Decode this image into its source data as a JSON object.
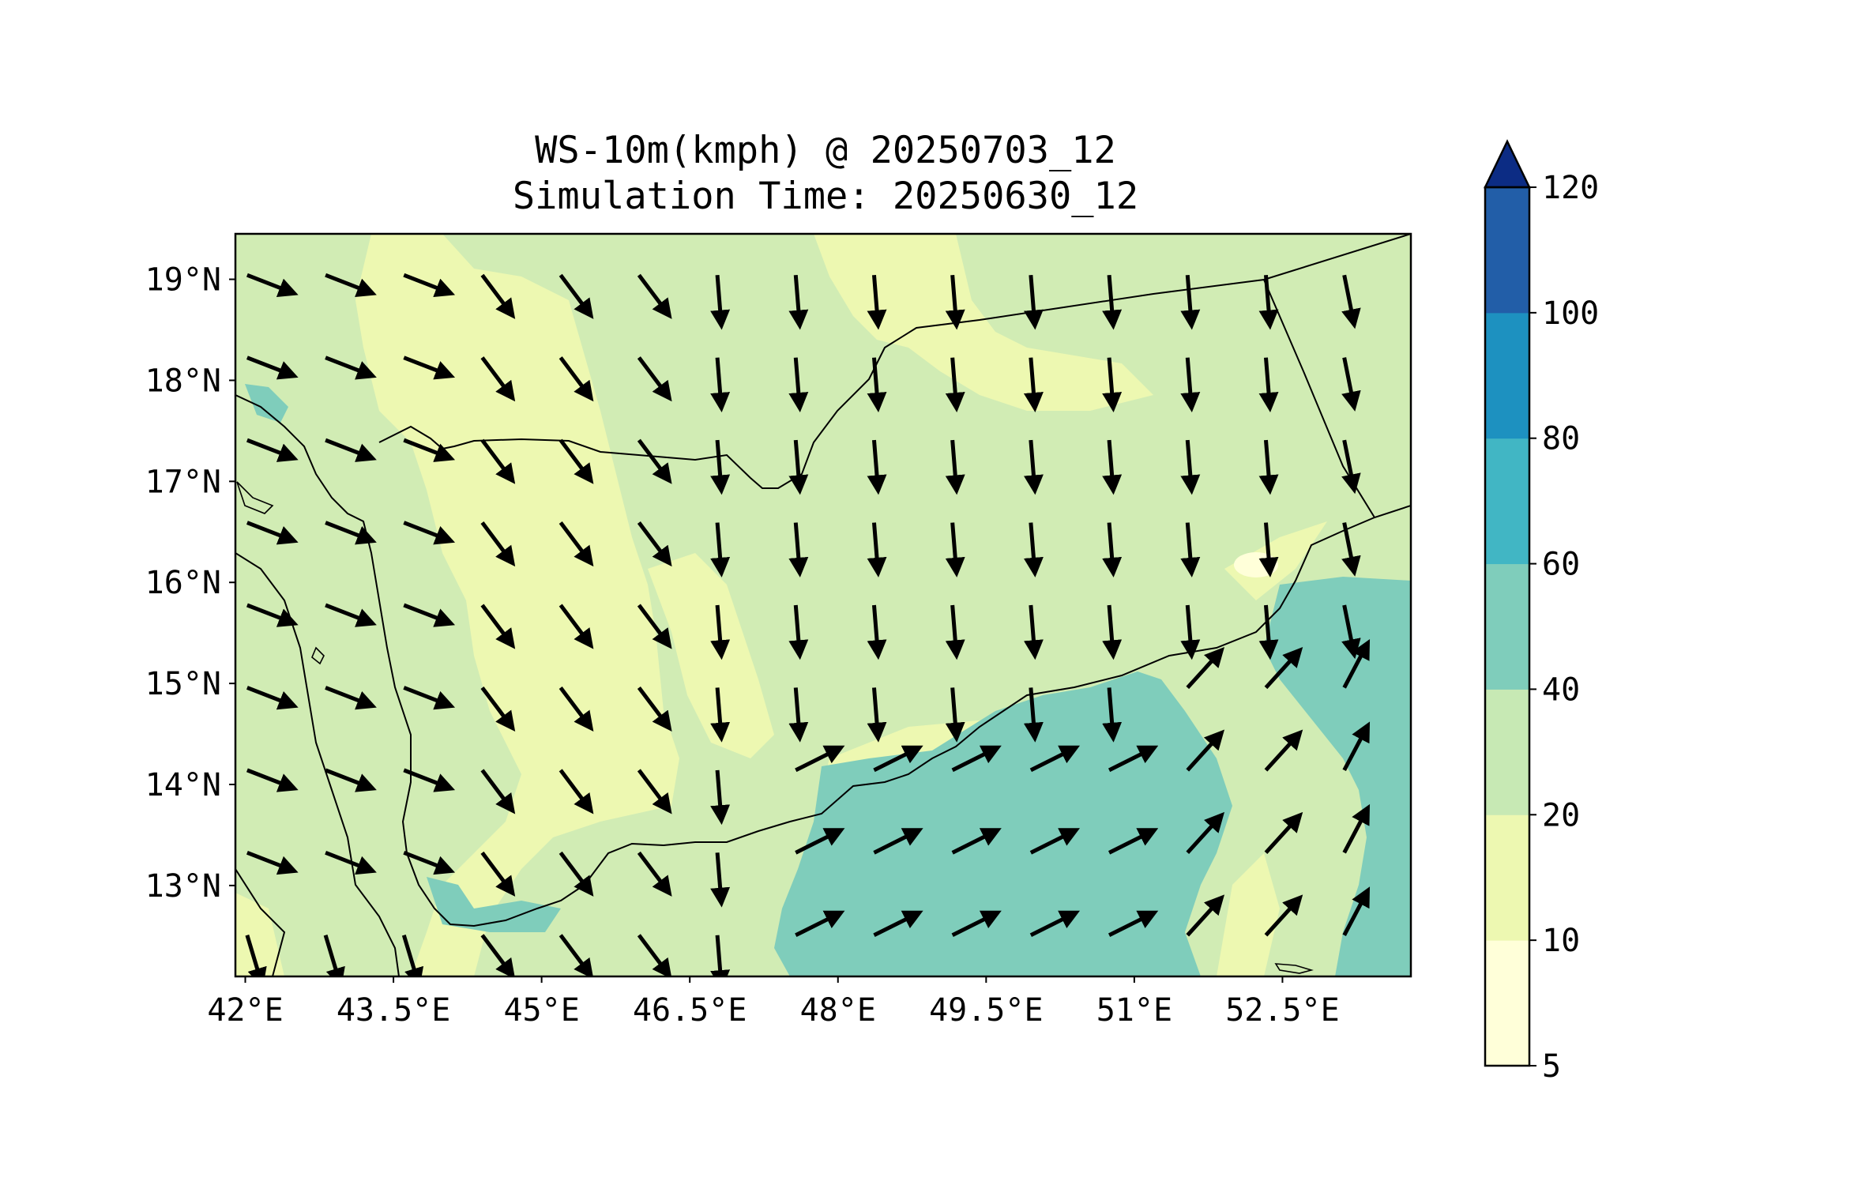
{
  "title_line1": "WS-10m(kmph) @ 20250703_12",
  "title_line2": "Simulation Time: 20250630_12",
  "map": {
    "lon_range": [
      41.9,
      53.8
    ],
    "lat_range": [
      12.1,
      19.45
    ],
    "x_ticks": [
      "42°E",
      "43.5°E",
      "45°E",
      "46.5°E",
      "48°E",
      "49.5°E",
      "51°E",
      "52.5°E"
    ],
    "y_ticks": [
      "19°N",
      "18°N",
      "17°N",
      "16°N",
      "15°N",
      "14°N",
      "13°N"
    ],
    "background_color": "#d1ecb4",
    "coastline_color": "#000000"
  },
  "colorbar": {
    "levels": [
      "5",
      "10",
      "20",
      "40",
      "60",
      "80",
      "100",
      "120"
    ],
    "colors": [
      "#ffffd9",
      "#edf8b1",
      "#c7e9b4",
      "#7fcdbb",
      "#41b6c4",
      "#1d91c0",
      "#225ea8",
      "#0c2c84"
    ],
    "extend": "max"
  },
  "vectors": {
    "color": "#000000"
  }
}
